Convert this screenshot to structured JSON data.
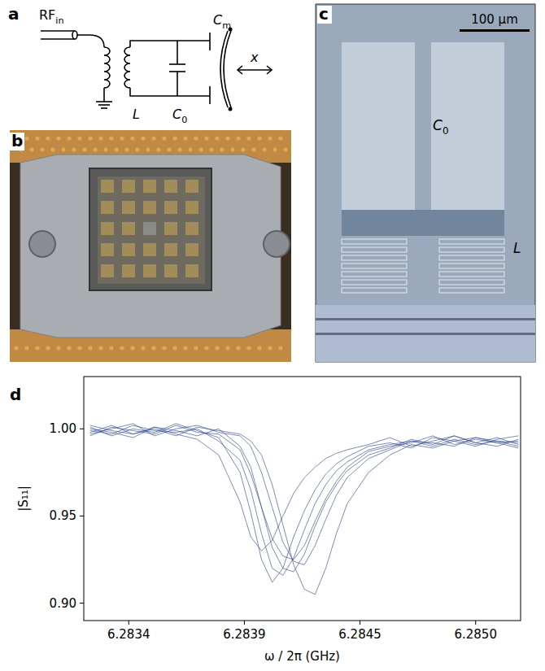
{
  "panels": {
    "a": {
      "letter": "a",
      "labels": {
        "rf_in": {
          "text": "RF",
          "sub": "in"
        },
        "inductor": "L",
        "capacitor": {
          "text": "C",
          "sub": "0"
        },
        "mechanical_capacitor": {
          "text": "C",
          "sub": "m"
        },
        "displacement": "x"
      }
    },
    "b": {
      "letter": "b"
    },
    "c": {
      "letter": "c",
      "scale_bar": "100 µm",
      "capacitor": {
        "text": "C",
        "sub": "0"
      },
      "inductor": "L"
    },
    "d": {
      "letter": "d"
    }
  },
  "chart_data": {
    "type": "line",
    "x_label": "ω / 2π (GHz)",
    "y_label": "|S₁₁|",
    "color": "#27408b",
    "grid": false,
    "xlim": [
      6.28317,
      6.28521
    ],
    "ylim": [
      0.89,
      1.03
    ],
    "xticks": [
      {
        "value": 6.28338,
        "label": "6.2834"
      },
      {
        "value": 6.28392,
        "label": "6.2839"
      },
      {
        "value": 6.28446,
        "label": "6.2845"
      },
      {
        "value": 6.285,
        "label": "6.2850"
      }
    ],
    "yticks": [
      {
        "value": 0.9,
        "label": "0.90"
      },
      {
        "value": 0.95,
        "label": "0.95"
      },
      {
        "value": 1.0,
        "label": "1.00"
      }
    ],
    "x": [
      6.2832,
      6.2833,
      6.2834,
      6.2835,
      6.2836,
      6.2837,
      6.2838,
      6.2839,
      6.28395,
      6.284,
      6.28405,
      6.2841,
      6.28415,
      6.2842,
      6.28425,
      6.2843,
      6.28435,
      6.2844,
      6.2845,
      6.2846,
      6.2847,
      6.2848,
      6.2849,
      6.285,
      6.2851,
      6.2852
    ],
    "series": [
      {
        "values": [
          0.998,
          1.002,
          0.997,
          1.001,
          0.999,
          0.996,
          1.0,
          0.99,
          0.978,
          0.955,
          0.932,
          0.92,
          0.918,
          0.928,
          0.944,
          0.958,
          0.968,
          0.976,
          0.985,
          0.989,
          0.994,
          0.991,
          0.996,
          0.992,
          0.995,
          0.991
        ]
      },
      {
        "values": [
          1.001,
          0.996,
          1.0,
          0.998,
          1.003,
          0.999,
          0.995,
          0.975,
          0.952,
          0.925,
          0.912,
          0.92,
          0.938,
          0.953,
          0.965,
          0.974,
          0.98,
          0.984,
          0.99,
          0.992,
          0.989,
          0.995,
          0.993,
          0.99,
          0.994,
          0.996
        ]
      },
      {
        "values": [
          0.997,
          1.0,
          1.003,
          0.996,
          1.0,
          1.002,
          0.998,
          0.996,
          0.99,
          0.975,
          0.955,
          0.935,
          0.924,
          0.922,
          0.933,
          0.948,
          0.962,
          0.972,
          0.983,
          0.988,
          0.993,
          0.99,
          0.994,
          0.991,
          0.993,
          0.99
        ]
      },
      {
        "values": [
          1.0,
          0.998,
          0.995,
          1.001,
          0.997,
          0.994,
          0.985,
          0.958,
          0.938,
          0.93,
          0.936,
          0.95,
          0.963,
          0.972,
          0.978,
          0.983,
          0.986,
          0.988,
          0.991,
          0.995,
          0.99,
          0.993,
          0.996,
          0.992,
          0.99,
          0.994
        ]
      },
      {
        "values": [
          1.002,
          0.999,
          0.997,
          1.0,
          0.996,
          1.001,
          0.999,
          0.997,
          0.993,
          0.985,
          0.968,
          0.945,
          0.922,
          0.908,
          0.905,
          0.92,
          0.94,
          0.957,
          0.975,
          0.985,
          0.991,
          0.989,
          0.993,
          0.995,
          0.992,
          0.989
        ]
      },
      {
        "values": [
          0.996,
          1.001,
          0.999,
          0.997,
          1.002,
          0.998,
          0.997,
          0.988,
          0.974,
          0.955,
          0.937,
          0.927,
          0.925,
          0.933,
          0.947,
          0.96,
          0.97,
          0.978,
          0.987,
          0.99,
          0.992,
          0.996,
          0.991,
          0.994,
          0.992,
          0.993
        ]
      },
      {
        "values": [
          0.999,
          0.997,
          1.002,
          0.999,
          0.998,
          1.0,
          0.993,
          0.982,
          0.965,
          0.94,
          0.92,
          0.916,
          0.926,
          0.942,
          0.957,
          0.968,
          0.976,
          0.981,
          0.988,
          0.991,
          0.993,
          0.992,
          0.99,
          0.995,
          0.993,
          0.992
        ]
      }
    ]
  }
}
